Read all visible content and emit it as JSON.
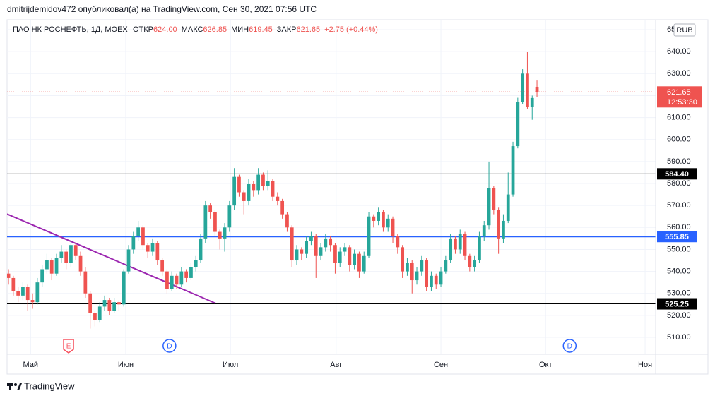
{
  "header": {
    "author_line": "dmitrijdemidov472 опубликовал(а) на TradingView.com, Сен 30, 2021 07:56 UTC",
    "symbol": "ПАО НК РОСНЕФТЬ, 1Д, MOEX",
    "open_label": "ОТКР",
    "open_value": "624.00",
    "high_label": "МАКС",
    "high_value": "626.85",
    "low_label": "МИН",
    "low_value": "619.45",
    "close_label": "ЗАКР",
    "close_value": "621.65",
    "change": "+2.75 (+0.44%)",
    "currency": "RUB",
    "countdown": "12:53:30",
    "brand": "TradingView"
  },
  "chart_data": {
    "type": "candlestick",
    "up_color": "#26a69a",
    "down_color": "#ef5350",
    "xlim": [
      -0.3,
      134.7
    ],
    "xticks": [
      {
        "value": 4.6,
        "label": "Май"
      },
      {
        "value": 24.4,
        "label": "Июн"
      },
      {
        "value": 46.2,
        "label": "Июл"
      },
      {
        "value": 68.2,
        "label": "Авг"
      },
      {
        "value": 90,
        "label": "Сен"
      },
      {
        "value": 111.8,
        "label": "Окт"
      },
      {
        "value": 132.5,
        "label": "Ноя"
      }
    ],
    "ylim": [
      502.3,
      654.5
    ],
    "yticks": [
      {
        "value": 510,
        "label": "510.00"
      },
      {
        "value": 520,
        "label": "520.00"
      },
      {
        "value": 530,
        "label": "530.00"
      },
      {
        "value": 540,
        "label": "540.00"
      },
      {
        "value": 550,
        "label": "550.00"
      },
      {
        "value": 560,
        "label": "560.00"
      },
      {
        "value": 570,
        "label": "570.00"
      },
      {
        "value": 580,
        "label": "580.00"
      },
      {
        "value": 590,
        "label": "590.00"
      },
      {
        "value": 600,
        "label": "600.00"
      },
      {
        "value": 610,
        "label": "610.00"
      },
      {
        "value": 620,
        "label": "620.00"
      },
      {
        "value": 630,
        "label": "630.00"
      },
      {
        "value": 640,
        "label": "640.00"
      },
      {
        "value": 650,
        "label": "650.00"
      }
    ],
    "grid": true,
    "candles": [
      [
        539,
        541,
        534,
        537
      ],
      [
        537,
        538,
        529,
        531
      ],
      [
        531,
        533,
        526,
        529
      ],
      [
        529,
        535,
        527,
        533
      ],
      [
        533,
        534,
        522,
        527
      ],
      [
        527,
        530,
        523,
        526
      ],
      [
        526,
        537,
        525,
        535
      ],
      [
        535,
        543,
        533,
        541
      ],
      [
        541,
        548,
        539,
        545
      ],
      [
        545,
        546,
        536,
        539
      ],
      [
        539,
        548,
        538,
        546
      ],
      [
        546,
        552,
        544,
        549
      ],
      [
        549,
        550,
        541,
        544
      ],
      [
        544,
        554,
        542,
        552
      ],
      [
        552,
        553,
        545,
        547
      ],
      [
        547,
        549,
        538,
        540
      ],
      [
        540,
        542,
        528,
        530
      ],
      [
        530,
        531,
        514,
        521
      ],
      [
        521,
        522,
        515,
        518
      ],
      [
        518,
        526,
        517,
        524
      ],
      [
        524,
        529,
        522,
        527
      ],
      [
        527,
        528,
        520,
        522
      ],
      [
        522,
        528,
        521,
        526
      ],
      [
        526,
        527,
        522,
        525
      ],
      [
        525,
        541,
        524,
        540
      ],
      [
        540,
        552,
        539,
        550
      ],
      [
        550,
        558,
        548,
        556
      ],
      [
        556,
        563,
        554,
        560
      ],
      [
        560,
        561,
        550,
        552
      ],
      [
        552,
        553,
        546,
        549
      ],
      [
        549,
        555,
        547,
        553
      ],
      [
        553,
        554,
        543,
        545
      ],
      [
        545,
        546,
        538,
        540
      ],
      [
        540,
        541,
        530,
        532
      ],
      [
        532,
        540,
        531,
        538
      ],
      [
        538,
        539,
        532,
        534
      ],
      [
        534,
        542,
        533,
        540
      ],
      [
        540,
        541,
        535,
        537
      ],
      [
        537,
        544,
        536,
        542
      ],
      [
        542,
        547,
        540,
        545
      ],
      [
        545,
        557,
        544,
        555
      ],
      [
        555,
        572,
        553,
        570
      ],
      [
        570,
        571,
        564,
        567
      ],
      [
        567,
        568,
        556,
        558
      ],
      [
        558,
        559,
        550,
        555
      ],
      [
        555,
        562,
        549,
        560
      ],
      [
        560,
        572,
        558,
        570
      ],
      [
        570,
        587,
        568,
        583
      ],
      [
        583,
        584,
        574,
        576
      ],
      [
        576,
        577,
        566,
        572
      ],
      [
        572,
        582,
        570,
        580
      ],
      [
        580,
        581,
        574,
        577
      ],
      [
        577,
        587,
        575,
        584
      ],
      [
        584,
        585,
        577,
        579
      ],
      [
        579,
        586,
        577,
        581
      ],
      [
        581,
        582,
        572,
        574
      ],
      [
        574,
        576,
        570,
        572
      ],
      [
        572,
        573,
        564,
        566
      ],
      [
        566,
        567,
        558,
        560
      ],
      [
        560,
        561,
        542,
        545
      ],
      [
        545,
        552,
        543,
        550
      ],
      [
        550,
        551,
        545,
        548
      ],
      [
        548,
        556,
        546,
        554
      ],
      [
        554,
        558,
        552,
        556
      ],
      [
        556,
        557,
        537,
        547
      ],
      [
        547,
        553,
        545,
        551
      ],
      [
        551,
        557,
        549,
        555
      ],
      [
        555,
        556,
        549,
        552
      ],
      [
        552,
        553,
        539,
        544
      ],
      [
        544,
        551,
        542,
        549
      ],
      [
        549,
        553,
        547,
        551
      ],
      [
        551,
        552,
        540,
        543
      ],
      [
        543,
        550,
        541,
        548
      ],
      [
        548,
        549,
        537,
        540
      ],
      [
        540,
        549,
        539,
        547
      ],
      [
        547,
        567,
        546,
        565
      ],
      [
        565,
        566,
        560,
        563
      ],
      [
        563,
        569,
        561,
        567
      ],
      [
        567,
        568,
        558,
        560
      ],
      [
        560,
        566,
        558,
        564
      ],
      [
        564,
        565,
        553,
        556
      ],
      [
        556,
        557,
        548,
        551
      ],
      [
        551,
        552,
        537,
        540
      ],
      [
        540,
        546,
        538,
        544
      ],
      [
        544,
        545,
        530,
        536
      ],
      [
        536,
        542,
        534,
        540
      ],
      [
        540,
        547,
        538,
        545
      ],
      [
        545,
        546,
        531,
        533
      ],
      [
        533,
        540,
        531,
        538
      ],
      [
        538,
        539,
        532,
        534
      ],
      [
        534,
        542,
        533,
        540
      ],
      [
        540,
        547,
        539,
        545
      ],
      [
        545,
        557,
        544,
        555
      ],
      [
        555,
        556,
        548,
        550
      ],
      [
        550,
        559,
        548,
        557
      ],
      [
        557,
        558,
        545,
        547
      ],
      [
        547,
        548,
        540,
        542
      ],
      [
        542,
        547,
        540,
        545
      ],
      [
        545,
        558,
        544,
        556
      ],
      [
        556,
        563,
        554,
        561
      ],
      [
        561,
        590,
        559,
        578
      ],
      [
        578,
        579,
        566,
        568
      ],
      [
        568,
        569,
        548,
        555
      ],
      [
        555,
        566,
        553,
        563
      ],
      [
        563,
        585,
        562,
        575
      ],
      [
        575,
        599,
        574,
        597
      ],
      [
        597,
        619,
        596,
        617
      ],
      [
        617,
        632,
        616,
        630
      ],
      [
        630,
        640,
        614,
        615
      ],
      [
        615,
        620,
        609,
        618.9
      ],
      [
        624,
        626.85,
        619.45,
        621.65
      ]
    ],
    "levels": [
      {
        "value": 584.4,
        "label": "584.40",
        "color": "#000000"
      },
      {
        "value": 555.85,
        "color": "#2962ff"
      },
      {
        "value": 525.25,
        "color": "#000000"
      }
    ],
    "trend_line": {
      "color": "#9c27b0",
      "points": [
        [
          -0.3,
          566.1
        ],
        [
          43.1,
          525.5
        ]
      ]
    },
    "events": [
      {
        "label": "E",
        "x": 12.5,
        "color": "#f7525f",
        "shape": "square"
      },
      {
        "label": "D",
        "x": 33.5,
        "color": "#2962ff",
        "shape": "circle"
      },
      {
        "label": "D",
        "x": 116.8,
        "color": "#2962ff",
        "shape": "circle"
      }
    ]
  }
}
